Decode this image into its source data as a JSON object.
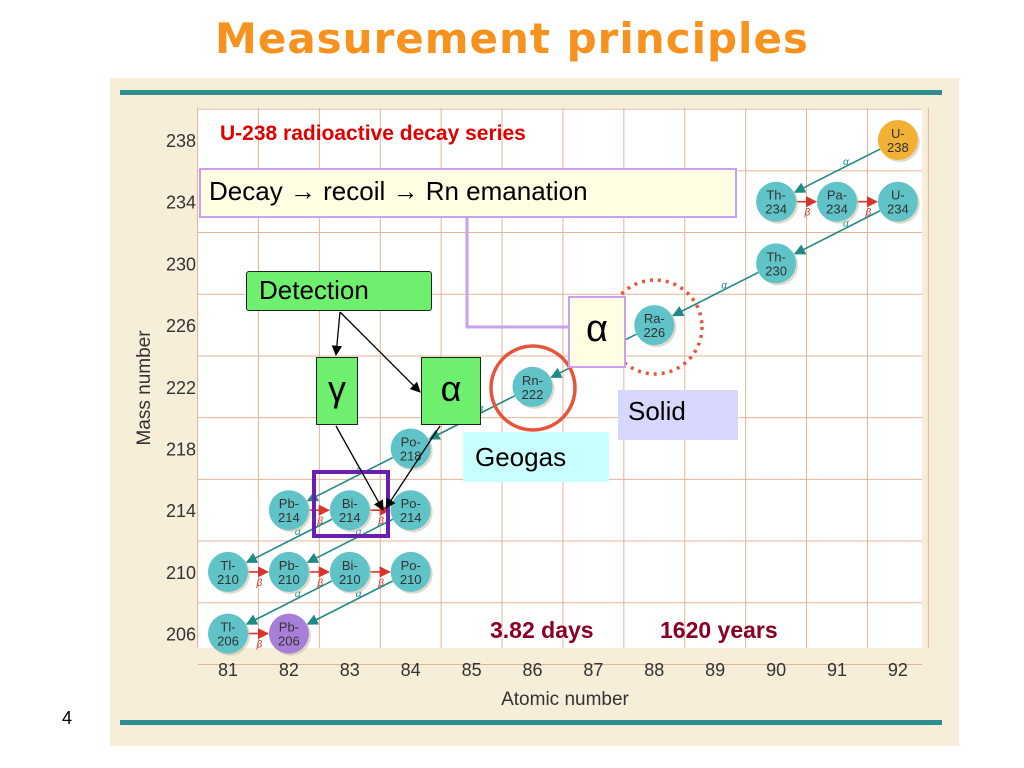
{
  "slide": {
    "title": "Measurement principles",
    "number": "4"
  },
  "figure": {
    "series_title": "U-238 radioactive decay series",
    "y_axis_label": "Mass number",
    "x_axis_label": "Atomic number",
    "y_ticks": [
      "238",
      "234",
      "230",
      "226",
      "222",
      "218",
      "214",
      "210",
      "206"
    ],
    "x_ticks": [
      "81",
      "82",
      "83",
      "84",
      "85",
      "86",
      "87",
      "88",
      "89",
      "90",
      "91",
      "92"
    ],
    "nuclides": [
      {
        "name": "U-",
        "mass": "238",
        "z": 92,
        "a": 238,
        "color": "#f2b135"
      },
      {
        "name": "Th-",
        "mass": "234",
        "z": 90,
        "a": 234,
        "color": "#5fc3c7"
      },
      {
        "name": "Pa-",
        "mass": "234",
        "z": 91,
        "a": 234,
        "color": "#5fc3c7"
      },
      {
        "name": "U-",
        "mass": "234",
        "z": 92,
        "a": 234,
        "color": "#5fc3c7"
      },
      {
        "name": "Th-",
        "mass": "230",
        "z": 90,
        "a": 230,
        "color": "#5fc3c7"
      },
      {
        "name": "Ra-",
        "mass": "226",
        "z": 88,
        "a": 226,
        "color": "#5fc3c7"
      },
      {
        "name": "Rn-",
        "mass": "222",
        "z": 86,
        "a": 222,
        "color": "#5fc3c7"
      },
      {
        "name": "Po-",
        "mass": "218",
        "z": 84,
        "a": 218,
        "color": "#5fc3c7"
      },
      {
        "name": "Pb-",
        "mass": "214",
        "z": 82,
        "a": 214,
        "color": "#5fc3c7"
      },
      {
        "name": "Bi-",
        "mass": "214",
        "z": 83,
        "a": 214,
        "color": "#5fc3c7"
      },
      {
        "name": "Po-",
        "mass": "214",
        "z": 84,
        "a": 214,
        "color": "#5fc3c7"
      },
      {
        "name": "Tl-",
        "mass": "210",
        "z": 81,
        "a": 210,
        "color": "#5fc3c7"
      },
      {
        "name": "Pb-",
        "mass": "210",
        "z": 82,
        "a": 210,
        "color": "#5fc3c7"
      },
      {
        "name": "Bi-",
        "mass": "210",
        "z": 83,
        "a": 210,
        "color": "#5fc3c7"
      },
      {
        "name": "Po-",
        "mass": "210",
        "z": 84,
        "a": 210,
        "color": "#5fc3c7"
      },
      {
        "name": "Tl-",
        "mass": "206",
        "z": 81,
        "a": 206,
        "color": "#5fc3c7"
      },
      {
        "name": "Pb-",
        "mass": "206",
        "z": 82,
        "a": 206,
        "color": "#a77fd8"
      }
    ],
    "decays": [
      {
        "from": [
          92,
          238
        ],
        "to": [
          90,
          234
        ],
        "type": "α"
      },
      {
        "from": [
          90,
          234
        ],
        "to": [
          91,
          234
        ],
        "type": "β"
      },
      {
        "from": [
          91,
          234
        ],
        "to": [
          92,
          234
        ],
        "type": "β"
      },
      {
        "from": [
          92,
          234
        ],
        "to": [
          90,
          230
        ],
        "type": "α"
      },
      {
        "from": [
          90,
          230
        ],
        "to": [
          88,
          226
        ],
        "type": "α"
      },
      {
        "from": [
          88,
          226
        ],
        "to": [
          86,
          222
        ],
        "type": "α"
      },
      {
        "from": [
          86,
          222
        ],
        "to": [
          84,
          218
        ],
        "type": "α"
      },
      {
        "from": [
          84,
          218
        ],
        "to": [
          82,
          214
        ],
        "type": "α"
      },
      {
        "from": [
          82,
          214
        ],
        "to": [
          83,
          214
        ],
        "type": "β"
      },
      {
        "from": [
          83,
          214
        ],
        "to": [
          84,
          214
        ],
        "type": "β"
      },
      {
        "from": [
          84,
          214
        ],
        "to": [
          82,
          210
        ],
        "type": "α"
      },
      {
        "from": [
          83,
          214
        ],
        "to": [
          81,
          210
        ],
        "type": "α"
      },
      {
        "from": [
          81,
          210
        ],
        "to": [
          82,
          210
        ],
        "type": "β"
      },
      {
        "from": [
          82,
          210
        ],
        "to": [
          83,
          210
        ],
        "type": "β"
      },
      {
        "from": [
          83,
          210
        ],
        "to": [
          84,
          210
        ],
        "type": "β"
      },
      {
        "from": [
          84,
          210
        ],
        "to": [
          82,
          206
        ],
        "type": "α"
      },
      {
        "from": [
          83,
          210
        ],
        "to": [
          81,
          206
        ],
        "type": "α"
      },
      {
        "from": [
          81,
          206
        ],
        "to": [
          82,
          206
        ],
        "type": "β"
      }
    ],
    "highlights": {
      "rn222_circle_color": "#e8543a",
      "ra226_dotted_circle_color": "#e8543a",
      "bi214_box_color": "#6a1fb0"
    }
  },
  "annotations": {
    "decay_text": "Decay → recoil  → Rn emanation",
    "detection": "Detection",
    "gamma": "γ",
    "alpha_detect": "α",
    "alpha_ra": "α",
    "solid": "Solid",
    "geogas": "Geogas",
    "rn_halflife": "3.82 days",
    "ra_halflife": "1620 years"
  },
  "colors": {
    "title": "#f7921e",
    "detection_green": "#6ef06e",
    "chart_background": "#f6eed8",
    "teal_bar": "#2f8c8c"
  }
}
